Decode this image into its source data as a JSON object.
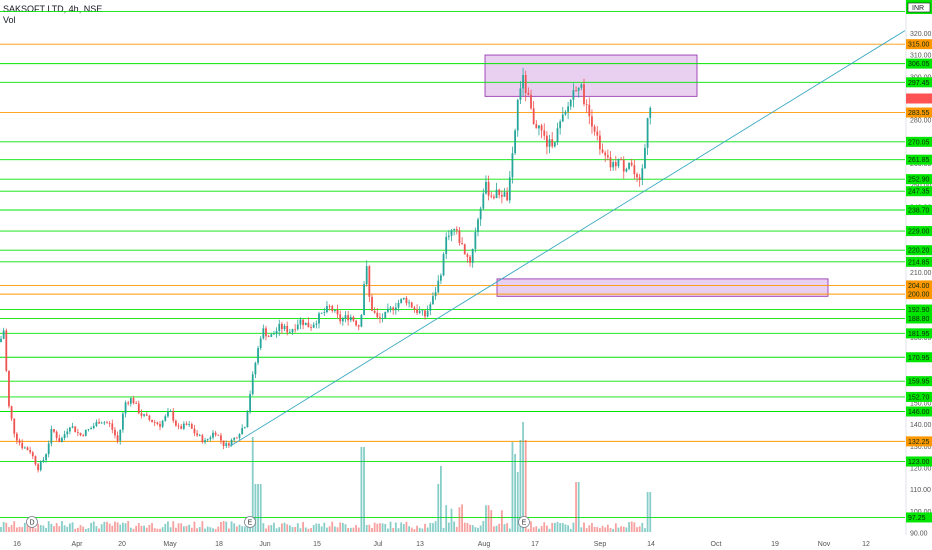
{
  "header": {
    "title": "SAKSOFT LTD, 4h, NSE",
    "vol_label": "Vol"
  },
  "currency_badge": "INR",
  "colors": {
    "green_line": "#22c55e",
    "orange_line": "#f59e0b",
    "trend_line": "#3aa8c2",
    "zone_fill": "#b455c8",
    "up": "#26a69a",
    "down": "#ef5350",
    "label_green": "#00e600",
    "label_orange": "#ff9800",
    "label_red": "#ff5252"
  },
  "chart_data": {
    "type": "candlestick",
    "y_axis_ticks": [
      "320.00",
      "310.00",
      "300.00",
      "280.00",
      "270.00",
      "260.00",
      "250.00",
      "240.00",
      "230.00",
      "220.00",
      "210.00",
      "200.00",
      "190.00",
      "180.00",
      "160.00",
      "150.00",
      "140.00",
      "130.00",
      "120.00",
      "110.00",
      "100.00",
      "90.00"
    ],
    "x_axis_ticks": [
      "16",
      "Apr",
      "20",
      "May",
      "18",
      "Jun",
      "15",
      "Jul",
      "13",
      "Aug",
      "17",
      "Sep",
      "14",
      "Oct",
      "19",
      "Nov",
      "12"
    ],
    "ylim": [
      87,
      330
    ],
    "green_levels": [
      "306.05",
      "297.45",
      "270.05",
      "261.85",
      "252.90",
      "247.35",
      "238.70",
      "229.00",
      "220.20",
      "214.85",
      "192.90",
      "188.80",
      "181.95",
      "170.95",
      "159.95",
      "152.70",
      "146.00",
      "123.00",
      "97.25"
    ],
    "orange_levels": [
      "315.00",
      "283.55",
      "204.00",
      "200.00",
      "132.25"
    ],
    "top_level": "330.00",
    "current_price": "290.00",
    "supply_zone": [
      291,
      310
    ],
    "demand_zone": [
      199,
      207
    ],
    "trendline": [
      {
        "x": "May 29",
        "y": 130
      },
      {
        "x": "Sep 14",
        "y": 249
      }
    ],
    "event_markers": [
      {
        "x": "Apr",
        "label": "D"
      },
      {
        "x": "May 29",
        "label": "E"
      },
      {
        "x": "Aug 12",
        "label": "E"
      }
    ]
  }
}
